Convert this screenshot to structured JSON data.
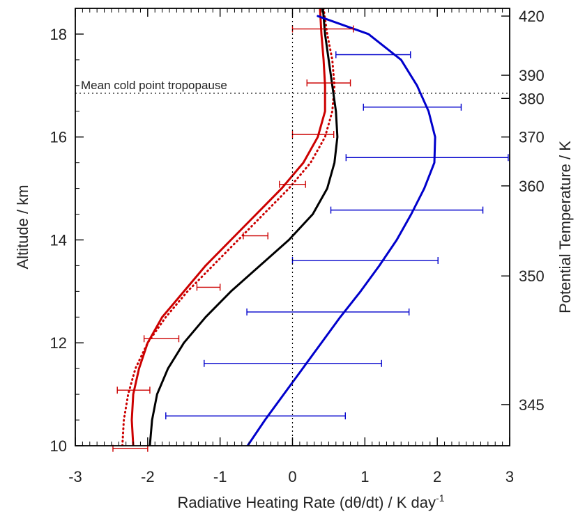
{
  "chart_data": {
    "type": "line",
    "xlabel": "Radiative Heating Rate (dθ/dt) / K day",
    "xlabel_sup": "-1",
    "ylabel": "Altitude / km",
    "ylabel_right": "Potential Temperature / K",
    "annotation": "Mean cold point tropopause",
    "xlim": [
      -3,
      3
    ],
    "ylim": [
      10,
      18.5
    ],
    "x_ticks": [
      -3,
      -2,
      -1,
      0,
      1,
      2,
      3
    ],
    "y_ticks": [
      10,
      12,
      14,
      16,
      18
    ],
    "right_ticks": [
      {
        "label": "420",
        "altitude": 18.35
      },
      {
        "label": "390",
        "altitude": 17.2
      },
      {
        "label": "380",
        "altitude": 16.75
      },
      {
        "label": "370",
        "altitude": 16.0
      },
      {
        "label": "360",
        "altitude": 15.05
      },
      {
        "label": "350",
        "altitude": 13.3
      },
      {
        "label": "345",
        "altitude": 10.8
      }
    ],
    "tropopause_altitude": 16.85,
    "zero_line_x": 0,
    "grid": false,
    "series": [
      {
        "style": "solid",
        "color": "#cc0000",
        "points": [
          [
            -2.2,
            10
          ],
          [
            -2.22,
            10.5
          ],
          [
            -2.2,
            11
          ],
          [
            -2.12,
            11.5
          ],
          [
            -2.0,
            12
          ],
          [
            -1.8,
            12.5
          ],
          [
            -1.5,
            13
          ],
          [
            -1.2,
            13.5
          ],
          [
            -0.85,
            14
          ],
          [
            -0.5,
            14.5
          ],
          [
            -0.15,
            15
          ],
          [
            0.15,
            15.5
          ],
          [
            0.35,
            16
          ],
          [
            0.45,
            16.5
          ],
          [
            0.45,
            17
          ],
          [
            0.43,
            17.5
          ],
          [
            0.4,
            18
          ],
          [
            0.38,
            18.5
          ]
        ]
      },
      {
        "style": "dotted",
        "color": "#cc0000",
        "points": [
          [
            -2.35,
            10
          ],
          [
            -2.33,
            10.5
          ],
          [
            -2.27,
            11
          ],
          [
            -2.17,
            11.5
          ],
          [
            -2.0,
            12
          ],
          [
            -1.75,
            12.5
          ],
          [
            -1.45,
            13
          ],
          [
            -1.1,
            13.5
          ],
          [
            -0.75,
            14
          ],
          [
            -0.4,
            14.5
          ],
          [
            -0.05,
            15
          ],
          [
            0.25,
            15.5
          ],
          [
            0.45,
            16
          ],
          [
            0.55,
            16.5
          ],
          [
            0.58,
            17
          ],
          [
            0.55,
            17.5
          ],
          [
            0.48,
            18
          ],
          [
            0.43,
            18.5
          ]
        ]
      },
      {
        "style": "solid",
        "color": "#000000",
        "points": [
          [
            -1.97,
            10
          ],
          [
            -1.94,
            10.5
          ],
          [
            -1.87,
            11
          ],
          [
            -1.72,
            11.5
          ],
          [
            -1.5,
            12
          ],
          [
            -1.2,
            12.5
          ],
          [
            -0.85,
            13
          ],
          [
            -0.45,
            13.5
          ],
          [
            -0.05,
            14
          ],
          [
            0.28,
            14.5
          ],
          [
            0.48,
            15
          ],
          [
            0.58,
            15.5
          ],
          [
            0.62,
            16
          ],
          [
            0.6,
            16.5
          ],
          [
            0.55,
            17
          ],
          [
            0.5,
            17.5
          ],
          [
            0.45,
            18
          ],
          [
            0.42,
            18.5
          ]
        ]
      },
      {
        "style": "solid",
        "color": "#0000cc",
        "points": [
          [
            -0.62,
            10
          ],
          [
            -0.38,
            10.5
          ],
          [
            -0.12,
            11
          ],
          [
            0.14,
            11.5
          ],
          [
            0.4,
            12
          ],
          [
            0.66,
            12.5
          ],
          [
            0.94,
            13
          ],
          [
            1.2,
            13.5
          ],
          [
            1.44,
            14
          ],
          [
            1.64,
            14.5
          ],
          [
            1.82,
            15
          ],
          [
            1.96,
            15.5
          ],
          [
            1.97,
            16
          ],
          [
            1.88,
            16.5
          ],
          [
            1.72,
            17
          ],
          [
            1.5,
            17.5
          ],
          [
            1.05,
            18
          ],
          [
            0.35,
            18.35
          ]
        ]
      }
    ],
    "error_bars": [
      {
        "color": "#cc0000",
        "y": 18.1,
        "xmin": 0.0,
        "xmax": 0.84
      },
      {
        "color": "#cc0000",
        "y": 17.05,
        "xmin": 0.2,
        "xmax": 0.8
      },
      {
        "color": "#cc0000",
        "y": 16.05,
        "xmin": 0.0,
        "xmax": 0.57
      },
      {
        "color": "#cc0000",
        "y": 15.08,
        "xmin": -0.18,
        "xmax": 0.18
      },
      {
        "color": "#cc0000",
        "y": 14.08,
        "xmin": -0.68,
        "xmax": -0.34
      },
      {
        "color": "#cc0000",
        "y": 13.08,
        "xmin": -1.32,
        "xmax": -1.0
      },
      {
        "color": "#cc0000",
        "y": 12.08,
        "xmin": -2.05,
        "xmax": -1.57
      },
      {
        "color": "#cc0000",
        "y": 11.08,
        "xmin": -2.42,
        "xmax": -1.97
      },
      {
        "color": "#cc0000",
        "y": 9.95,
        "xmin": -2.48,
        "xmax": -2.0
      },
      {
        "color": "#0000cc",
        "y": 17.6,
        "xmin": 0.6,
        "xmax": 1.63
      },
      {
        "color": "#0000cc",
        "y": 16.58,
        "xmin": 0.98,
        "xmax": 2.33
      },
      {
        "color": "#0000cc",
        "y": 15.6,
        "xmin": 0.74,
        "xmax": 2.98
      },
      {
        "color": "#0000cc",
        "y": 14.58,
        "xmin": 0.53,
        "xmax": 2.63
      },
      {
        "color": "#0000cc",
        "y": 13.6,
        "xmin": 0.0,
        "xmax": 2.01
      },
      {
        "color": "#0000cc",
        "y": 12.6,
        "xmin": -0.63,
        "xmax": 1.61
      },
      {
        "color": "#0000cc",
        "y": 11.6,
        "xmin": -1.22,
        "xmax": 1.23
      },
      {
        "color": "#0000cc",
        "y": 10.58,
        "xmin": -1.75,
        "xmax": 0.73
      }
    ]
  }
}
